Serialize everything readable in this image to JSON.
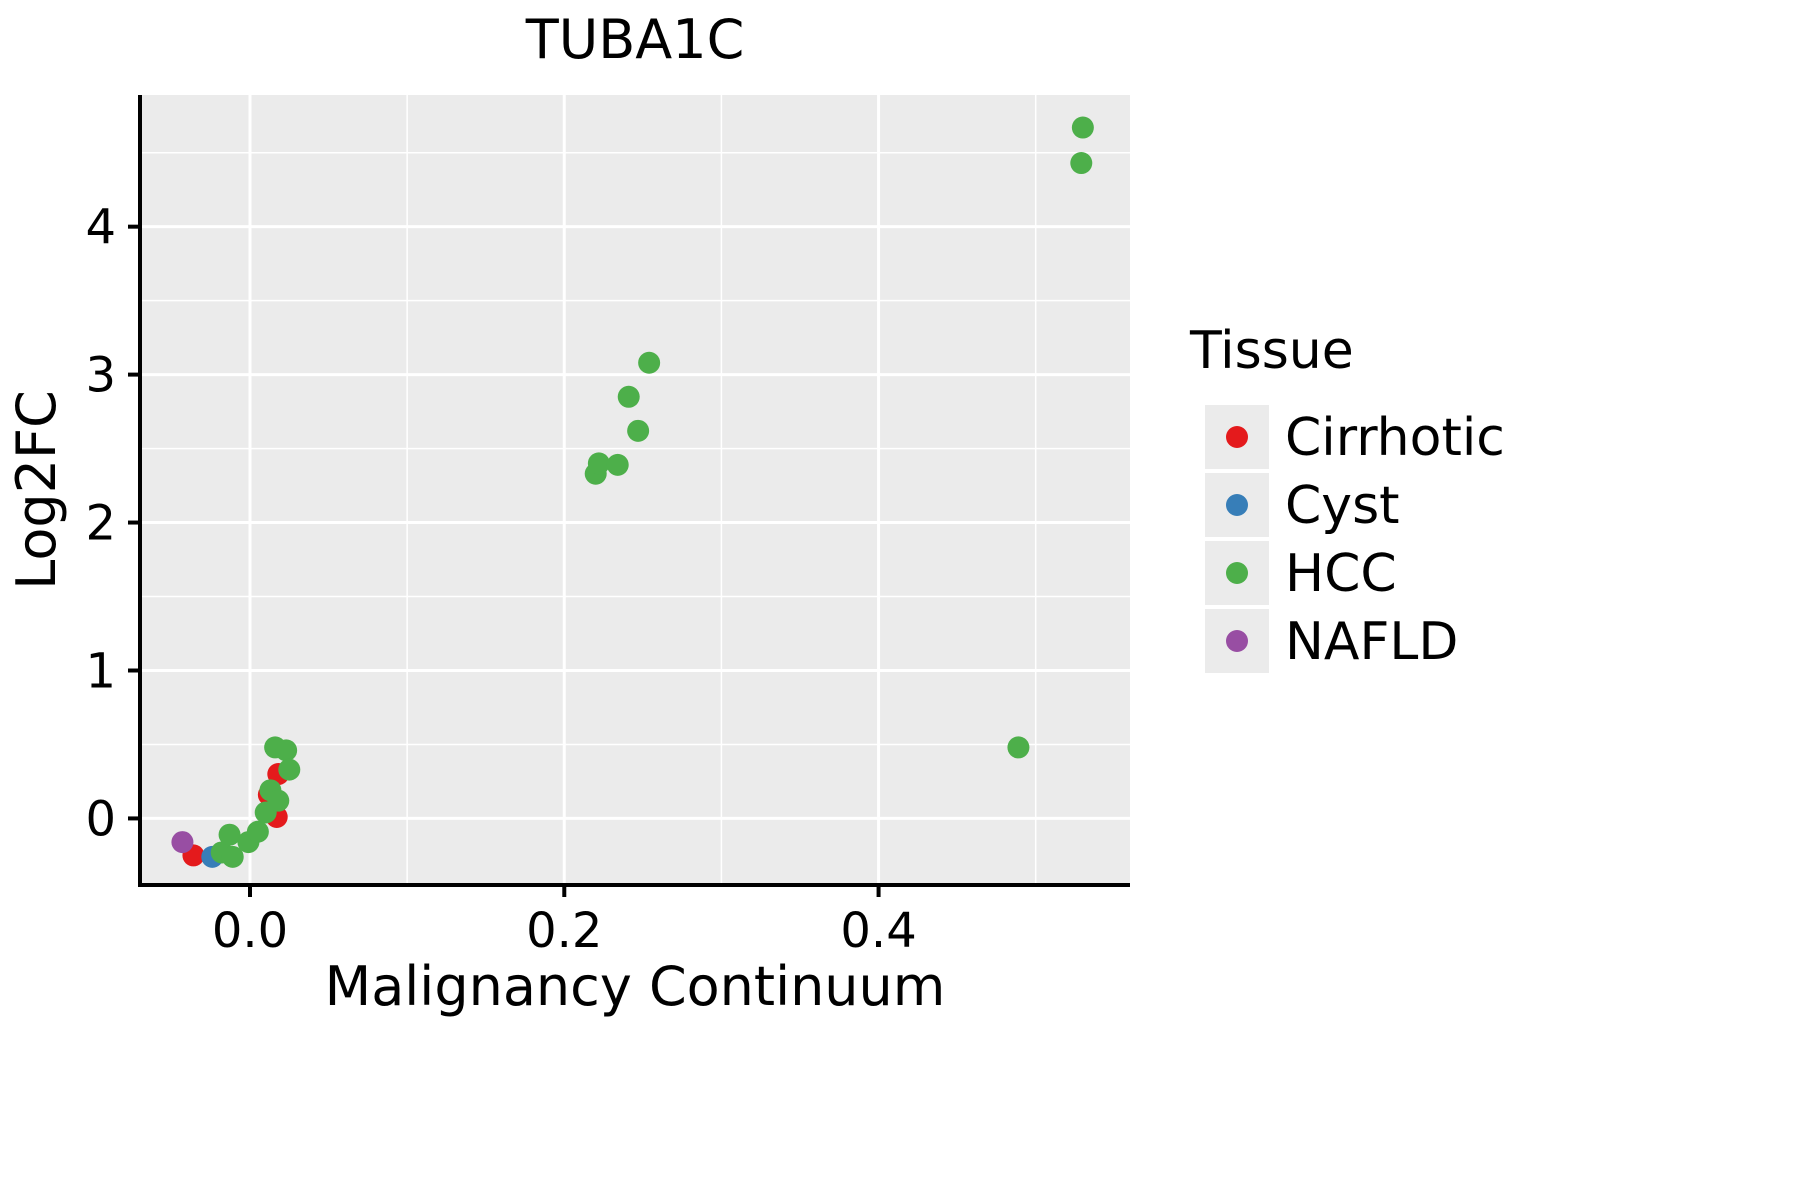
{
  "figure": {
    "title": "TUBA1C"
  },
  "chart_data": {
    "type": "scatter",
    "title": "TUBA1C",
    "xlabel": "Malignancy Continuum",
    "ylabel": "Log2FC",
    "xlim": [
      -0.07,
      0.56
    ],
    "ylim": [
      -0.45,
      4.89
    ],
    "xticks": {
      "values": [
        0.0,
        0.2,
        0.4
      ],
      "labels": [
        "0.0",
        "0.2",
        "0.4"
      ]
    },
    "yticks": {
      "values": [
        0,
        1,
        2,
        3,
        4
      ],
      "labels": [
        "0",
        "1",
        "2",
        "3",
        "4"
      ]
    },
    "x_minor": [
      0.1,
      0.3,
      0.5
    ],
    "y_minor": [
      0.5,
      1.5,
      2.5,
      3.5,
      4.5
    ],
    "grid": true,
    "panel_bg": "#EBEBEB",
    "grid_color": "#FFFFFF",
    "legend": {
      "title": "Tissue",
      "position": "right"
    },
    "series": [
      {
        "name": "Cirrhotic",
        "color": "#E41A1C",
        "points": [
          [
            -0.036,
            -0.25
          ],
          [
            0.017,
            0.01
          ],
          [
            0.012,
            0.16
          ],
          [
            0.018,
            0.3
          ]
        ]
      },
      {
        "name": "Cyst",
        "color": "#377EB8",
        "points": [
          [
            -0.024,
            -0.26
          ]
        ]
      },
      {
        "name": "HCC",
        "color": "#4DAF4A",
        "points": [
          [
            -0.018,
            -0.23
          ],
          [
            -0.011,
            -0.26
          ],
          [
            -0.013,
            -0.11
          ],
          [
            -0.001,
            -0.16
          ],
          [
            0.005,
            -0.09
          ],
          [
            0.01,
            0.04
          ],
          [
            0.013,
            0.19
          ],
          [
            0.018,
            0.12
          ],
          [
            0.016,
            0.48
          ],
          [
            0.023,
            0.46
          ],
          [
            0.025,
            0.33
          ],
          [
            0.22,
            2.33
          ],
          [
            0.222,
            2.4
          ],
          [
            0.234,
            2.39
          ],
          [
            0.241,
            2.85
          ],
          [
            0.247,
            2.62
          ],
          [
            0.254,
            3.08
          ],
          [
            0.489,
            0.48
          ],
          [
            0.529,
            4.43
          ],
          [
            0.53,
            4.67
          ]
        ]
      },
      {
        "name": "NAFLD",
        "color": "#984EA3",
        "points": [
          [
            -0.043,
            -0.16
          ]
        ]
      }
    ]
  }
}
